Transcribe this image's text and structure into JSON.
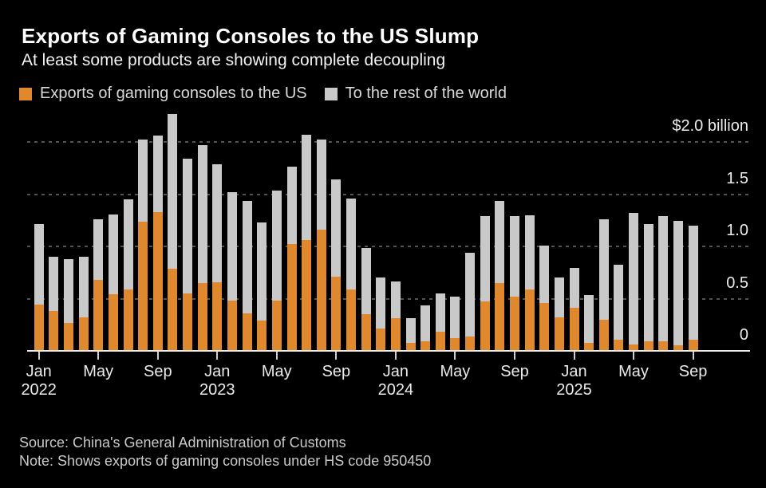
{
  "header": {
    "title": "Exports of Gaming Consoles to the US Slump",
    "subtitle": "At least some products are showing complete decoupling"
  },
  "legend": [
    {
      "label": "Exports of gaming consoles to the US",
      "color": "#e0882e"
    },
    {
      "label": "To the rest of the world",
      "color": "#c9c9c9"
    }
  ],
  "footer": {
    "source": "Source: China's General Administration of Customs",
    "note": "Note: Shows exports of gaming consoles under HS code 950450"
  },
  "chart_data": {
    "type": "bar",
    "stacked": true,
    "unit": "USD billion",
    "title": "Exports of Gaming Consoles to the US Slump",
    "x": [
      "Jan 2022",
      "Feb 2022",
      "Mar 2022",
      "Apr 2022",
      "May 2022",
      "Jun 2022",
      "Jul 2022",
      "Aug 2022",
      "Sep 2022",
      "Oct 2022",
      "Nov 2022",
      "Dec 2022",
      "Jan 2023",
      "Feb 2023",
      "Mar 2023",
      "Apr 2023",
      "May 2023",
      "Jun 2023",
      "Jul 2023",
      "Aug 2023",
      "Sep 2023",
      "Oct 2023",
      "Nov 2023",
      "Dec 2023",
      "Jan 2024",
      "Feb 2024",
      "Mar 2024",
      "Apr 2024",
      "May 2024",
      "Jun 2024",
      "Jul 2024",
      "Aug 2024",
      "Sep 2024",
      "Oct 2024",
      "Nov 2024",
      "Dec 2024",
      "Jan 2025",
      "Feb 2025",
      "Mar 2025",
      "Apr 2025",
      "May 2025",
      "Jun 2025",
      "Jul 2025",
      "Aug 2025",
      "Sep 2025"
    ],
    "series": [
      {
        "name": "Exports of gaming consoles to the US",
        "color": "#e0882e",
        "values": [
          0.44,
          0.38,
          0.27,
          0.32,
          0.68,
          0.54,
          0.59,
          1.24,
          1.33,
          0.79,
          0.55,
          0.65,
          0.66,
          0.48,
          0.36,
          0.29,
          0.48,
          1.02,
          1.06,
          1.16,
          0.71,
          0.59,
          0.35,
          0.21,
          0.31,
          0.08,
          0.09,
          0.18,
          0.12,
          0.14,
          0.47,
          0.65,
          0.52,
          0.59,
          0.46,
          0.32,
          0.41,
          0.08,
          0.3,
          0.11,
          0.06,
          0.09,
          0.09,
          0.05,
          0.11
        ]
      },
      {
        "name": "To the rest of the world",
        "color": "#c9c9c9",
        "values": [
          0.77,
          0.52,
          0.61,
          0.58,
          0.58,
          0.76,
          0.86,
          0.79,
          0.73,
          1.48,
          1.29,
          1.32,
          1.13,
          1.04,
          1.08,
          0.94,
          1.05,
          0.74,
          1.01,
          0.86,
          0.93,
          0.87,
          0.63,
          0.49,
          0.35,
          0.24,
          0.34,
          0.37,
          0.4,
          0.8,
          0.82,
          0.79,
          0.77,
          0.71,
          0.55,
          0.38,
          0.38,
          0.46,
          0.96,
          0.72,
          1.26,
          1.12,
          1.2,
          1.19,
          1.09
        ]
      }
    ],
    "ylim": [
      0,
      2.3
    ],
    "grid": "dashed-horizontal",
    "legend_position": "top-left",
    "yticks": [
      {
        "value": 0,
        "label": "0"
      },
      {
        "value": 0.5,
        "label": "0.5"
      },
      {
        "value": 1,
        "label": "1.0"
      },
      {
        "value": 1.5,
        "label": "1.5"
      },
      {
        "value": 2,
        "label": "$2.0 billion"
      }
    ],
    "xticks": [
      {
        "i": 0,
        "month": "Jan",
        "year": "2022"
      },
      {
        "i": 4,
        "month": "May"
      },
      {
        "i": 8,
        "month": "Sep"
      },
      {
        "i": 12,
        "month": "Jan",
        "year": "2023"
      },
      {
        "i": 16,
        "month": "May"
      },
      {
        "i": 20,
        "month": "Sep"
      },
      {
        "i": 24,
        "month": "Jan",
        "year": "2024"
      },
      {
        "i": 28,
        "month": "May"
      },
      {
        "i": 32,
        "month": "Sep"
      },
      {
        "i": 36,
        "month": "Jan",
        "year": "2025"
      },
      {
        "i": 40,
        "month": "May"
      },
      {
        "i": 44,
        "month": "Sep"
      }
    ]
  }
}
